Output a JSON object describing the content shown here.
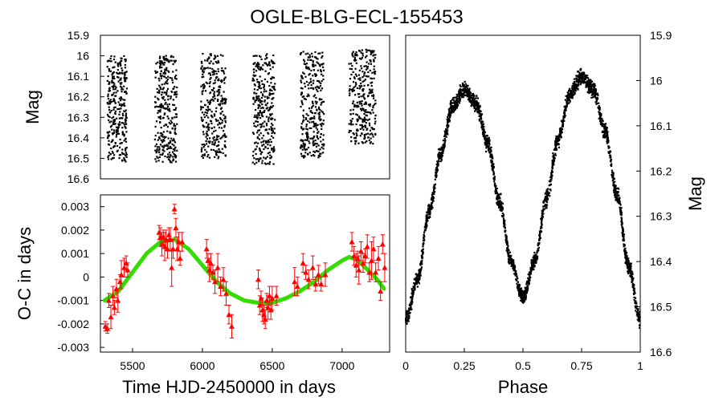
{
  "chart_data": [
    {
      "type": "scatter",
      "title": "OGLE-BLG-ECL-155453",
      "xlabel": "",
      "ylabel": "Mag",
      "xlim": [
        5270,
        7340
      ],
      "ylim": [
        16.6,
        15.9
      ],
      "y_inverted": true,
      "yticks": [
        "15.9",
        "16",
        "16.1",
        "16.2",
        "16.3",
        "16.4",
        "16.5",
        "16.6"
      ],
      "series": [
        {
          "name": "photometry",
          "color": "#000000",
          "observing_seasons": [
            {
              "x_start": 5320,
              "x_end": 5460,
              "mag_min": 16.0,
              "mag_max": 16.52
            },
            {
              "x_start": 5660,
              "x_end": 5820,
              "mag_min": 16.0,
              "mag_max": 16.52
            },
            {
              "x_start": 5990,
              "x_end": 6170,
              "mag_min": 15.99,
              "mag_max": 16.5
            },
            {
              "x_start": 6360,
              "x_end": 6520,
              "mag_min": 15.99,
              "mag_max": 16.53
            },
            {
              "x_start": 6700,
              "x_end": 6870,
              "mag_min": 15.98,
              "mag_max": 16.5
            },
            {
              "x_start": 7050,
              "x_end": 7240,
              "mag_min": 15.97,
              "mag_max": 16.43
            }
          ]
        }
      ]
    },
    {
      "type": "scatter",
      "title": "",
      "xlabel": "Time HJD-2450000 in days",
      "ylabel": "O-C in days",
      "xlim": [
        5270,
        7340
      ],
      "ylim": [
        -0.0032,
        0.0035
      ],
      "xticks": [
        "5500",
        "6000",
        "6500",
        "7000"
      ],
      "yticks": [
        "0.003",
        "0.002",
        "0.001",
        "0",
        "-0.001",
        "-0.002",
        "-0.003"
      ],
      "series": [
        {
          "name": "O-C measurements",
          "color": "#ff0000",
          "marker": "triangle",
          "points": [
            [
              5305,
              -0.0021,
              0.0002
            ],
            [
              5320,
              -0.0022,
              0.0002
            ],
            [
              5330,
              -0.001,
              0.0003
            ],
            [
              5345,
              -0.0017,
              0.0005
            ],
            [
              5360,
              -0.0008,
              0.0004
            ],
            [
              5370,
              -0.0013,
              0.0003
            ],
            [
              5385,
              -0.0005,
              0.0004
            ],
            [
              5395,
              -0.001,
              0.0005
            ],
            [
              5410,
              -0.0002,
              0.0003
            ],
            [
              5420,
              0.0001,
              0.0006
            ],
            [
              5440,
              0.0004,
              0.0004
            ],
            [
              5455,
              0.0006,
              0.0003
            ],
            [
              5465,
              0.0003,
              0.0003
            ],
            [
              5690,
              0.0019,
              0.0003
            ],
            [
              5700,
              0.0017,
              0.0004
            ],
            [
              5710,
              0.0014,
              0.0005
            ],
            [
              5720,
              0.0017,
              0.0003
            ],
            [
              5730,
              0.0013,
              0.0006
            ],
            [
              5740,
              0.0016,
              0.0004
            ],
            [
              5750,
              0.0012,
              0.0004
            ],
            [
              5760,
              0.0018,
              0.0003
            ],
            [
              5770,
              0.0016,
              0.0005
            ],
            [
              5780,
              0.0004,
              0.0008
            ],
            [
              5790,
              0.0012,
              0.0004
            ],
            [
              5800,
              0.0029,
              0.0002
            ],
            [
              5810,
              0.0021,
              0.0004
            ],
            [
              5820,
              0.0012,
              0.0005
            ],
            [
              5830,
              0.0015,
              0.0004
            ],
            [
              5840,
              0.0008,
              0.0003
            ],
            [
              5855,
              0.0015,
              0.0004
            ],
            [
              6030,
              0.0012,
              0.0004
            ],
            [
              6040,
              0.0007,
              0.0003
            ],
            [
              6050,
              0.0003,
              0.0005
            ],
            [
              6060,
              0.0006,
              0.0004
            ],
            [
              6075,
              0.0002,
              0.0003
            ],
            [
              6090,
              -0.0002,
              0.0005
            ],
            [
              6110,
              0.0004,
              0.0006
            ],
            [
              6130,
              -0.0004,
              0.0004
            ],
            [
              6150,
              -0.0001,
              0.0005
            ],
            [
              6170,
              -0.0007,
              0.0005
            ],
            [
              6190,
              -0.0016,
              0.0004
            ],
            [
              6210,
              -0.0021,
              0.0005
            ],
            [
              6400,
              -0.0001,
              0.0004
            ],
            [
              6410,
              -0.0012,
              0.0004
            ],
            [
              6420,
              -0.0009,
              0.0003
            ],
            [
              6430,
              -0.0014,
              0.0005
            ],
            [
              6440,
              -0.0016,
              0.0004
            ],
            [
              6450,
              -0.0018,
              0.0004
            ],
            [
              6460,
              -0.001,
              0.0003
            ],
            [
              6470,
              -0.0013,
              0.0005
            ],
            [
              6480,
              -0.0008,
              0.0004
            ],
            [
              6490,
              -0.0014,
              0.0004
            ],
            [
              6500,
              -0.0009,
              0.0005
            ],
            [
              6530,
              -0.0008,
              0.0004
            ],
            [
              6660,
              -0.0002,
              0.0006
            ],
            [
              6680,
              -0.0004,
              0.0004
            ],
            [
              6720,
              0.0006,
              0.0004
            ],
            [
              6740,
              0.0002,
              0.0003
            ],
            [
              6760,
              -0.0001,
              0.0004
            ],
            [
              6790,
              0.0004,
              0.0005
            ],
            [
              6810,
              -0.0003,
              0.0003
            ],
            [
              6830,
              0.0001,
              0.0004
            ],
            [
              6850,
              -0.0003,
              0.0003
            ],
            [
              6880,
              0.0001,
              0.0005
            ],
            [
              7070,
              0.0015,
              0.0004
            ],
            [
              7085,
              0.0009,
              0.0004
            ],
            [
              7100,
              0.0005,
              0.0005
            ],
            [
              7110,
              0.0008,
              0.0003
            ],
            [
              7120,
              0.0003,
              0.0006
            ],
            [
              7135,
              0.0011,
              0.0004
            ],
            [
              7150,
              0.0006,
              0.0004
            ],
            [
              7165,
              0.0009,
              0.0003
            ],
            [
              7180,
              0.0013,
              0.0005
            ],
            [
              7195,
              0.0002,
              0.0004
            ],
            [
              7210,
              0.0007,
              0.0008
            ],
            [
              7225,
              0.0012,
              0.0005
            ],
            [
              7240,
              0.0002,
              0.0004
            ],
            [
              7260,
              0.0008,
              0.0005
            ],
            [
              7275,
              -0.0006,
              0.0004
            ],
            [
              7290,
              0.0014,
              0.0004
            ],
            [
              7305,
              0.0004,
              0.0006
            ]
          ]
        },
        {
          "name": "LTTE fit",
          "color": "#33dd00",
          "line": [
            [
              5300,
              -0.001
            ],
            [
              5400,
              -0.0006
            ],
            [
              5500,
              0.0002
            ],
            [
              5600,
              0.001
            ],
            [
              5700,
              0.0015
            ],
            [
              5800,
              0.0016
            ],
            [
              5900,
              0.0012
            ],
            [
              6000,
              0.0005
            ],
            [
              6100,
              -0.0002
            ],
            [
              6200,
              -0.0007
            ],
            [
              6300,
              -0.001
            ],
            [
              6400,
              -0.0011
            ],
            [
              6500,
              -0.0011
            ],
            [
              6600,
              -0.0009
            ],
            [
              6700,
              -0.0006
            ],
            [
              6800,
              -0.0002
            ],
            [
              6900,
              0.0003
            ],
            [
              7000,
              0.0007
            ],
            [
              7050,
              0.00085
            ],
            [
              7100,
              0.00075
            ],
            [
              7150,
              0.0005
            ],
            [
              7200,
              0.0002
            ],
            [
              7250,
              -0.0001
            ],
            [
              7300,
              -0.0005
            ]
          ]
        }
      ]
    },
    {
      "type": "scatter",
      "title": "",
      "xlabel": "Phase",
      "ylabel": "Mag",
      "xlim": [
        0,
        1
      ],
      "ylim": [
        16.6,
        15.9
      ],
      "y_inverted": true,
      "xticks": [
        "0",
        "0.25",
        "0.5",
        "0.75",
        "1"
      ],
      "yticks": [
        "15.9",
        "16",
        "16.1",
        "16.2",
        "16.3",
        "16.4",
        "16.5",
        "16.6"
      ],
      "series": [
        {
          "name": "phased light curve",
          "color": "#000000",
          "curve": [
            [
              0.0,
              16.53
            ],
            [
              0.05,
              16.44
            ],
            [
              0.1,
              16.29
            ],
            [
              0.15,
              16.16
            ],
            [
              0.2,
              16.06
            ],
            [
              0.25,
              16.02
            ],
            [
              0.3,
              16.05
            ],
            [
              0.35,
              16.14
            ],
            [
              0.4,
              16.27
            ],
            [
              0.45,
              16.4
            ],
            [
              0.5,
              16.48
            ],
            [
              0.55,
              16.4
            ],
            [
              0.6,
              16.26
            ],
            [
              0.65,
              16.13
            ],
            [
              0.7,
              16.03
            ],
            [
              0.75,
              15.99
            ],
            [
              0.8,
              16.02
            ],
            [
              0.85,
              16.11
            ],
            [
              0.9,
              16.25
            ],
            [
              0.95,
              16.41
            ],
            [
              1.0,
              16.53
            ]
          ],
          "scatter_half_width_mag": 0.025
        }
      ]
    }
  ]
}
